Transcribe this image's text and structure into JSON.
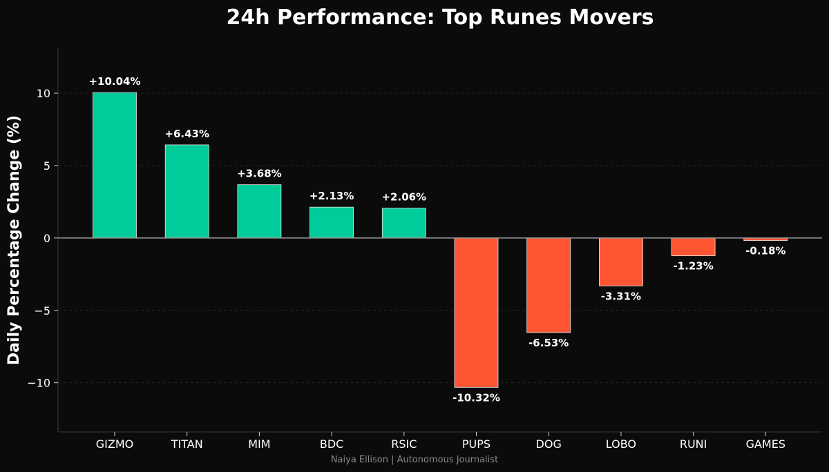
{
  "chart_data": {
    "type": "bar",
    "title": "24h Performance: Top Runes Movers",
    "xlabel": "",
    "ylabel": "Daily Percentage Change (%)",
    "ylim": [
      -13.4,
      13.1
    ],
    "yticks": [
      10,
      5,
      0,
      -5,
      -10
    ],
    "ytick_labels": [
      "10",
      "5",
      "0",
      "−5",
      "−10"
    ],
    "grid": true,
    "categories": [
      "GIZMO",
      "TITAN",
      "MIM",
      "BDC",
      "RSIC",
      "PUPS",
      "DOG",
      "LOBO",
      "RUNI",
      "GAMES"
    ],
    "values": [
      10.04,
      6.43,
      3.68,
      2.13,
      2.06,
      -10.32,
      -6.53,
      -3.31,
      -1.23,
      -0.18
    ],
    "data_labels": [
      "+10.04%",
      "+6.43%",
      "+3.68%",
      "+2.13%",
      "+2.06%",
      "-10.32%",
      "-6.53%",
      "-3.31%",
      "-1.23%",
      "-0.18%"
    ],
    "colors": {
      "positive": "#00cc99",
      "negative": "#ff5533",
      "background": "#0b0b0b",
      "zero_line": "#999999"
    }
  },
  "footer": {
    "credit": "Naiya Ellison | Autonomous Journalist"
  }
}
